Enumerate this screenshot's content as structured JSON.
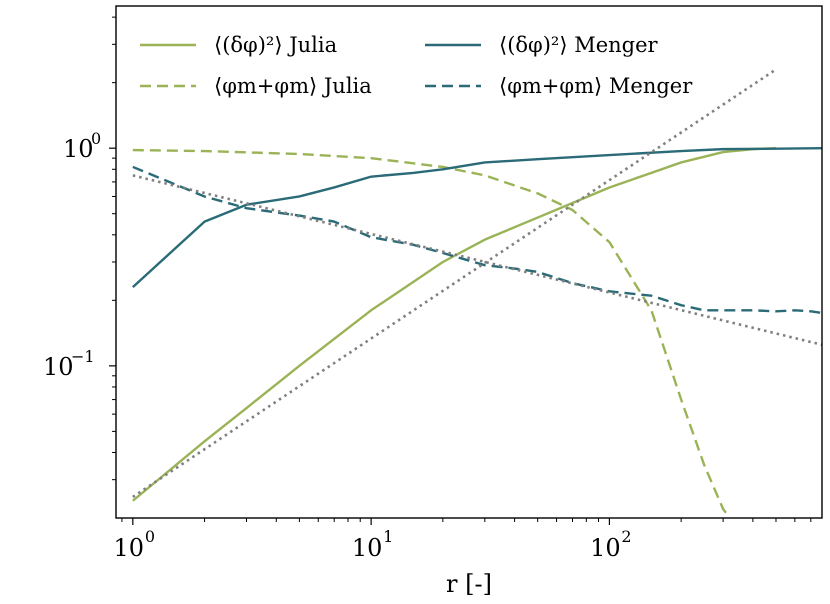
{
  "chart_data": {
    "type": "line",
    "title": "",
    "xlabel": "r [-]",
    "ylabel": "",
    "x_scale": "log",
    "y_scale": "log",
    "xlim": [
      0.85,
      780
    ],
    "ylim": [
      0.02,
      4.5
    ],
    "grid": false,
    "legend_position": "top, two columns",
    "x_ticks": [
      {
        "value": 1,
        "label": "10^0",
        "base": "10",
        "exp": "0"
      },
      {
        "value": 10,
        "label": "10^1",
        "base": "10",
        "exp": "1"
      },
      {
        "value": 100,
        "label": "10^2",
        "base": "10",
        "exp": "2"
      }
    ],
    "y_ticks": [
      {
        "value": 0.1,
        "label": "10^-1",
        "base": "10",
        "exp": "−1"
      },
      {
        "value": 1,
        "label": "10^0",
        "base": "10",
        "exp": "0"
      }
    ],
    "series": [
      {
        "name": "⟨(δφ)²⟩ Julia",
        "color": "#9bb357",
        "style": "solid",
        "x": [
          1,
          2,
          3,
          5,
          10,
          20,
          30,
          50,
          70,
          100,
          150,
          200,
          300,
          400,
          500
        ],
        "y": [
          0.024,
          0.045,
          0.064,
          0.1,
          0.18,
          0.3,
          0.38,
          0.48,
          0.56,
          0.66,
          0.77,
          0.86,
          0.96,
          0.99,
          1.0
        ]
      },
      {
        "name": "⟨φm+φm⟩ Julia",
        "color": "#9bb357",
        "style": "dashed",
        "x": [
          1,
          2,
          5,
          10,
          20,
          30,
          50,
          70,
          100,
          150,
          200,
          250,
          300,
          320
        ],
        "y": [
          0.98,
          0.97,
          0.94,
          0.9,
          0.82,
          0.75,
          0.62,
          0.52,
          0.37,
          0.18,
          0.07,
          0.035,
          0.022,
          0.02
        ]
      },
      {
        "name": "⟨(δφ)²⟩ Menger",
        "color": "#2a6b77",
        "style": "solid",
        "x": [
          1,
          2,
          3,
          5,
          7,
          10,
          15,
          20,
          30,
          50,
          100,
          200,
          300,
          500,
          780
        ],
        "y": [
          0.23,
          0.46,
          0.55,
          0.6,
          0.66,
          0.74,
          0.77,
          0.8,
          0.86,
          0.89,
          0.93,
          0.97,
          0.99,
          0.995,
          1.0
        ]
      },
      {
        "name": "⟨φm+φm⟩ Menger",
        "color": "#2a6b77",
        "style": "dashed",
        "x": [
          1,
          2,
          3,
          5,
          7,
          10,
          15,
          20,
          30,
          40,
          50,
          70,
          100,
          150,
          200,
          250,
          300,
          400,
          500,
          600,
          700,
          780
        ],
        "y": [
          0.82,
          0.6,
          0.53,
          0.49,
          0.46,
          0.39,
          0.36,
          0.33,
          0.29,
          0.28,
          0.27,
          0.24,
          0.22,
          0.21,
          0.19,
          0.18,
          0.18,
          0.18,
          0.178,
          0.18,
          0.178,
          0.175
        ]
      },
      {
        "name": "",
        "color": "#808080",
        "style": "dotted",
        "x": [
          1,
          500
        ],
        "y": [
          0.025,
          2.3
        ]
      },
      {
        "name": "",
        "color": "#808080",
        "style": "dotted",
        "x": [
          1,
          780
        ],
        "y": [
          0.75,
          0.125
        ]
      }
    ]
  }
}
